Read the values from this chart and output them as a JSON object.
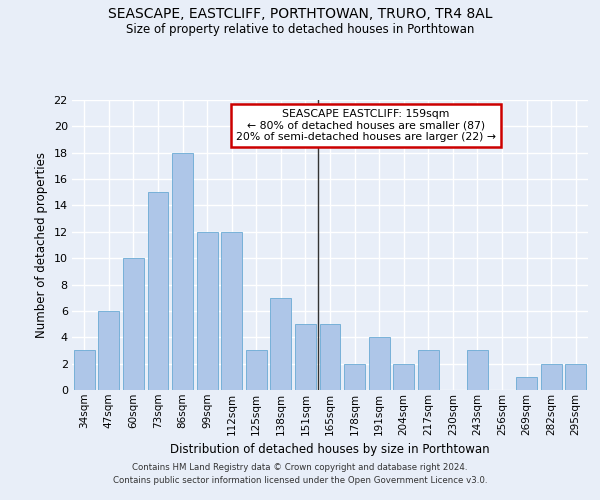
{
  "title": "SEASCAPE, EASTCLIFF, PORTHTOWAN, TRURO, TR4 8AL",
  "subtitle": "Size of property relative to detached houses in Porthtowan",
  "xlabel": "Distribution of detached houses by size in Porthtowan",
  "ylabel": "Number of detached properties",
  "categories": [
    "34sqm",
    "47sqm",
    "60sqm",
    "73sqm",
    "86sqm",
    "99sqm",
    "112sqm",
    "125sqm",
    "138sqm",
    "151sqm",
    "165sqm",
    "178sqm",
    "191sqm",
    "204sqm",
    "217sqm",
    "230sqm",
    "243sqm",
    "256sqm",
    "269sqm",
    "282sqm",
    "295sqm"
  ],
  "values": [
    3,
    6,
    10,
    15,
    18,
    12,
    12,
    3,
    7,
    5,
    5,
    2,
    4,
    2,
    3,
    0,
    3,
    0,
    1,
    2,
    2
  ],
  "bar_color": "#aec6e8",
  "bar_edge_color": "#6aaad4",
  "bg_color": "#e8eef8",
  "grid_color": "#ffffff",
  "annotation_text": "SEASCAPE EASTCLIFF: 159sqm\n← 80% of detached houses are smaller (87)\n20% of semi-detached houses are larger (22) →",
  "annotation_box_color": "#ffffff",
  "annotation_box_edge_color": "#cc0000",
  "vline_x": 9.5,
  "vline_color": "#333333",
  "footnote1": "Contains HM Land Registry data © Crown copyright and database right 2024.",
  "footnote2": "Contains public sector information licensed under the Open Government Licence v3.0.",
  "ylim": [
    0,
    22
  ],
  "yticks": [
    0,
    2,
    4,
    6,
    8,
    10,
    12,
    14,
    16,
    18,
    20,
    22
  ]
}
